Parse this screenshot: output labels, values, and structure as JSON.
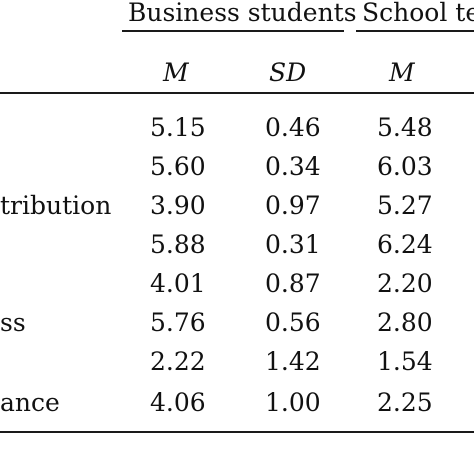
{
  "table": {
    "groups": [
      "Business students",
      "School te"
    ],
    "subheaders": [
      "M",
      "SD",
      "M"
    ],
    "row_labels": [
      "",
      "",
      "tribution",
      "",
      "",
      "ss",
      "",
      "ance"
    ],
    "rows": [
      [
        "5.15",
        "0.46",
        "5.48"
      ],
      [
        "5.60",
        "0.34",
        "6.03"
      ],
      [
        "3.90",
        "0.97",
        "5.27"
      ],
      [
        "5.88",
        "0.31",
        "6.24"
      ],
      [
        "4.01",
        "0.87",
        "2.20"
      ],
      [
        "5.76",
        "0.56",
        "2.80"
      ],
      [
        "2.22",
        "1.42",
        "1.54"
      ],
      [
        "4.06",
        "1.00",
        "2.25"
      ]
    ]
  }
}
